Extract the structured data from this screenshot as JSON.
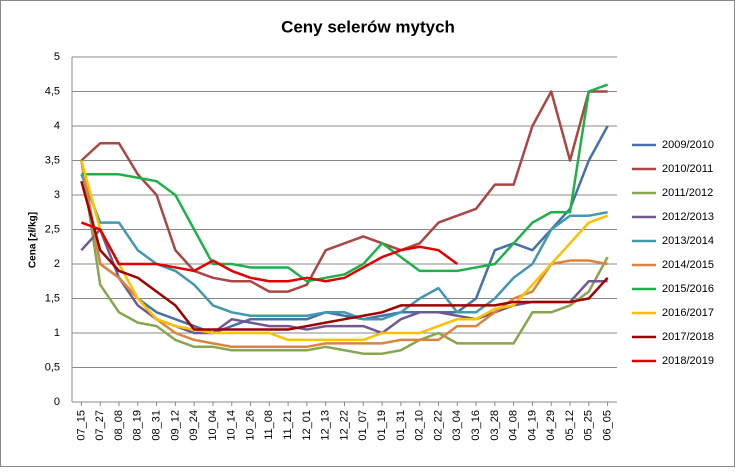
{
  "chart_data": {
    "type": "line",
    "title": "Ceny selerów mytych",
    "y_label": "Cena [zł/kg]",
    "categories": [
      "07_15",
      "07_27",
      "08_08",
      "08_19",
      "08_31",
      "09_12",
      "09_24",
      "10_04",
      "10_14",
      "10_26",
      "11_08",
      "11_21",
      "12_01",
      "12_13",
      "12_22",
      "01_07",
      "01_19",
      "01_31",
      "02_10",
      "02_22",
      "03_04",
      "03_16",
      "03_28",
      "04_08",
      "04_19",
      "04_29",
      "05_12",
      "05_25",
      "06_05"
    ],
    "ylim": [
      0,
      5
    ],
    "yticks": [
      0,
      {
        "value": 0.5,
        "label": "0,5"
      },
      1,
      {
        "value": 1.5,
        "label": "1,5"
      },
      2,
      {
        "value": 2.5,
        "label": "2,5"
      },
      3,
      {
        "value": 3.5,
        "label": "3,5"
      },
      4,
      {
        "value": 4.5,
        "label": "4,5"
      },
      5
    ],
    "grid": true,
    "legend": "right",
    "series": [
      {
        "name": "2009/2010",
        "color": "#4572a7",
        "values": [
          3.5,
          2.0,
          1.8,
          1.5,
          1.3,
          1.2,
          1.1,
          1.0,
          1.1,
          1.2,
          1.2,
          1.2,
          1.2,
          1.3,
          1.25,
          1.2,
          1.25,
          1.3,
          1.3,
          1.3,
          1.3,
          1.5,
          2.2,
          2.3,
          2.2,
          2.5,
          2.8,
          3.5,
          4.0
        ]
      },
      {
        "name": "2010/2011",
        "color": "#aa4643",
        "values": [
          3.5,
          3.75,
          3.75,
          3.3,
          3.0,
          2.2,
          1.9,
          1.8,
          1.75,
          1.75,
          1.6,
          1.6,
          1.7,
          2.2,
          2.3,
          2.4,
          2.3,
          2.2,
          2.3,
          2.6,
          2.7,
          2.8,
          3.15,
          3.15,
          4.0,
          4.5,
          3.5,
          4.5,
          4.5
        ]
      },
      {
        "name": "2011/2012",
        "color": "#89a54e",
        "values": [
          3.5,
          1.7,
          1.3,
          1.15,
          1.1,
          0.9,
          0.8,
          0.8,
          0.75,
          0.75,
          0.75,
          0.75,
          0.75,
          0.8,
          0.75,
          0.7,
          0.7,
          0.75,
          0.9,
          1.0,
          0.85,
          0.85,
          0.85,
          0.85,
          1.3,
          1.3,
          1.4,
          1.6,
          2.1
        ]
      },
      {
        "name": "2012/2013",
        "color": "#71588f",
        "values": [
          2.2,
          2.5,
          1.8,
          1.4,
          1.2,
          1.1,
          1.0,
          1.0,
          1.2,
          1.15,
          1.1,
          1.1,
          1.05,
          1.1,
          1.1,
          1.1,
          1.0,
          1.2,
          1.3,
          1.3,
          1.25,
          1.2,
          1.3,
          1.4,
          1.45,
          1.45,
          1.45,
          1.75,
          1.75
        ]
      },
      {
        "name": "2013/2014",
        "color": "#4198af",
        "values": [
          3.3,
          2.6,
          2.6,
          2.2,
          2.0,
          1.9,
          1.7,
          1.4,
          1.3,
          1.25,
          1.25,
          1.25,
          1.25,
          1.3,
          1.3,
          1.2,
          1.2,
          1.3,
          1.5,
          1.65,
          1.3,
          1.3,
          1.5,
          1.8,
          2.0,
          2.5,
          2.7,
          2.7,
          2.75
        ]
      },
      {
        "name": "2014/2015",
        "color": "#db843d",
        "values": [
          3.5,
          2.0,
          1.8,
          1.5,
          1.2,
          1.0,
          0.9,
          0.85,
          0.8,
          0.8,
          0.8,
          0.8,
          0.8,
          0.85,
          0.85,
          0.85,
          0.85,
          0.9,
          0.9,
          0.9,
          1.1,
          1.1,
          1.3,
          1.5,
          1.6,
          2.0,
          2.05,
          2.05,
          2.0
        ]
      },
      {
        "name": "2015/2016",
        "color": "#1fb04a",
        "values": [
          3.3,
          3.3,
          3.3,
          3.25,
          3.2,
          3.0,
          2.5,
          2.0,
          2.0,
          1.95,
          1.95,
          1.95,
          1.75,
          1.8,
          1.85,
          2.0,
          2.3,
          2.1,
          1.9,
          1.9,
          1.9,
          1.95,
          2.0,
          2.3,
          2.6,
          2.75,
          2.75,
          4.5,
          4.6
        ]
      },
      {
        "name": "2016/2017",
        "color": "#ffc000",
        "values": [
          3.5,
          2.5,
          2.0,
          1.5,
          1.2,
          1.1,
          1.05,
          1.0,
          1.0,
          1.0,
          1.0,
          0.9,
          0.9,
          0.9,
          0.9,
          0.9,
          1.0,
          1.0,
          1.0,
          1.1,
          1.2,
          1.2,
          1.35,
          1.4,
          1.7,
          2.0,
          2.3,
          2.6,
          2.7
        ]
      },
      {
        "name": "2017/2018",
        "color": "#a00000",
        "values": [
          3.2,
          2.2,
          1.9,
          1.8,
          1.6,
          1.4,
          1.05,
          1.05,
          1.05,
          1.05,
          1.05,
          1.05,
          1.1,
          1.15,
          1.2,
          1.25,
          1.3,
          1.4,
          1.4,
          1.4,
          1.4,
          1.4,
          1.4,
          1.45,
          1.45,
          1.45,
          1.45,
          1.5,
          1.8
        ]
      },
      {
        "name": "2018/2019",
        "color": "#e00000",
        "values": [
          2.6,
          2.5,
          2.0,
          2.0,
          2.0,
          1.95,
          1.9,
          2.05,
          1.9,
          1.8,
          1.75,
          1.75,
          1.8,
          1.75,
          1.8,
          1.95,
          2.1,
          2.2,
          2.25,
          2.2,
          2.0,
          null,
          null,
          null,
          null,
          null,
          null,
          null,
          null
        ]
      }
    ]
  }
}
